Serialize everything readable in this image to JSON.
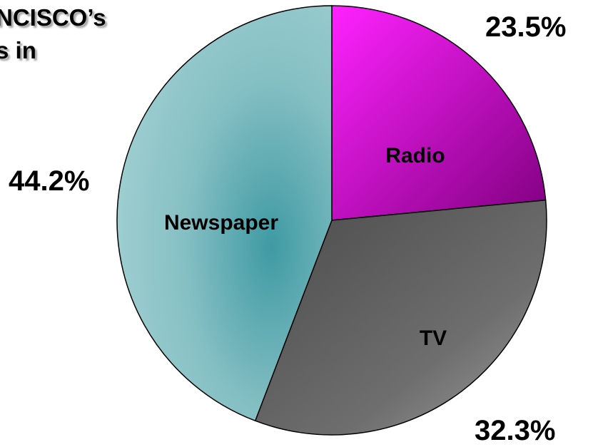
{
  "title": {
    "line1": "NCISCO’s",
    "line2": "s in"
  },
  "chart_data": {
    "type": "pie",
    "title": "",
    "slices": [
      {
        "label": "Radio",
        "value": 23.5,
        "value_label": "23.5%",
        "color": "#dd00dd"
      },
      {
        "label": "TV",
        "value": 32.3,
        "value_label": "32.3%",
        "color": "#6a6a6a"
      },
      {
        "label": "Newspaper",
        "value": 44.2,
        "value_label": "44.2%",
        "color": "#8cc3c6"
      }
    ]
  }
}
